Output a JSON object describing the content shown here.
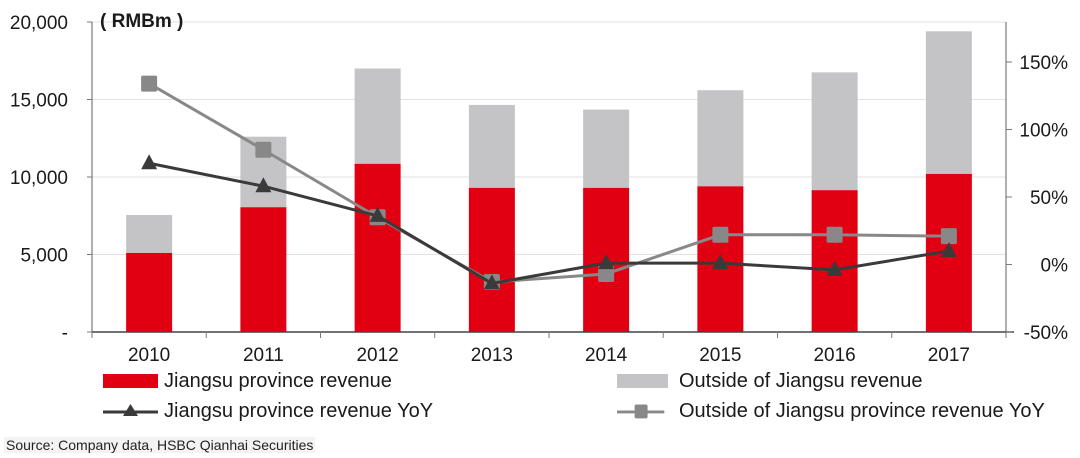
{
  "chart_data": {
    "type": "bar",
    "subtype": "stacked bar with dual-axis lines",
    "title": "",
    "unit_label": "( RMBm )",
    "categories": [
      "2010",
      "2011",
      "2012",
      "2013",
      "2014",
      "2015",
      "2016",
      "2017"
    ],
    "series": [
      {
        "name": "Jiangsu province revenue",
        "kind": "bar",
        "axis": "left",
        "color": "#E00012",
        "values": [
          5100,
          8050,
          10850,
          9300,
          9300,
          9400,
          9150,
          10200
        ]
      },
      {
        "name": "Outside of Jiangsu revenue",
        "kind": "bar",
        "axis": "left",
        "color": "#C4C4C6",
        "values": [
          2450,
          4550,
          6150,
          5350,
          5050,
          6200,
          7600,
          9200
        ]
      },
      {
        "name": "Jiangsu province revenue YoY",
        "kind": "line",
        "marker": "triangle",
        "axis": "right",
        "color": "#3A3A3A",
        "values": [
          75,
          58,
          36,
          -14,
          1,
          1,
          -4,
          10
        ]
      },
      {
        "name": "Outside of Jiangsu province revenue YoY",
        "kind": "line",
        "marker": "square",
        "axis": "right",
        "color": "#888888",
        "values": [
          134,
          85,
          35,
          -13,
          -7,
          22,
          22,
          21
        ]
      }
    ],
    "left_axis": {
      "min": 0,
      "max": 20000,
      "ticks": [
        0,
        5000,
        10000,
        15000,
        20000
      ],
      "tick_labels": [
        "-",
        "5,000",
        "10,000",
        "15,000",
        "20,000"
      ]
    },
    "right_axis": {
      "min": -50,
      "max": 180,
      "ticks": [
        -50,
        0,
        50,
        100,
        150
      ],
      "tick_labels": [
        "-50%",
        "0%",
        "50%",
        "100%",
        "150%"
      ]
    },
    "xlabel": "",
    "ylabel": "",
    "grid": true,
    "legend_position": "bottom"
  },
  "legend": {
    "items": [
      {
        "label": "Jiangsu province revenue",
        "type": "bar",
        "color": "#E00012"
      },
      {
        "label": "Outside of Jiangsu revenue",
        "type": "bar",
        "color": "#C4C4C6"
      },
      {
        "label": "Jiangsu province revenue YoY",
        "type": "line-triangle",
        "color": "#3A3A3A"
      },
      {
        "label": "Outside of Jiangsu province revenue YoY",
        "type": "line-square",
        "color": "#888888"
      }
    ]
  },
  "source": "Source: Company data, HSBC Qianhai Securities"
}
